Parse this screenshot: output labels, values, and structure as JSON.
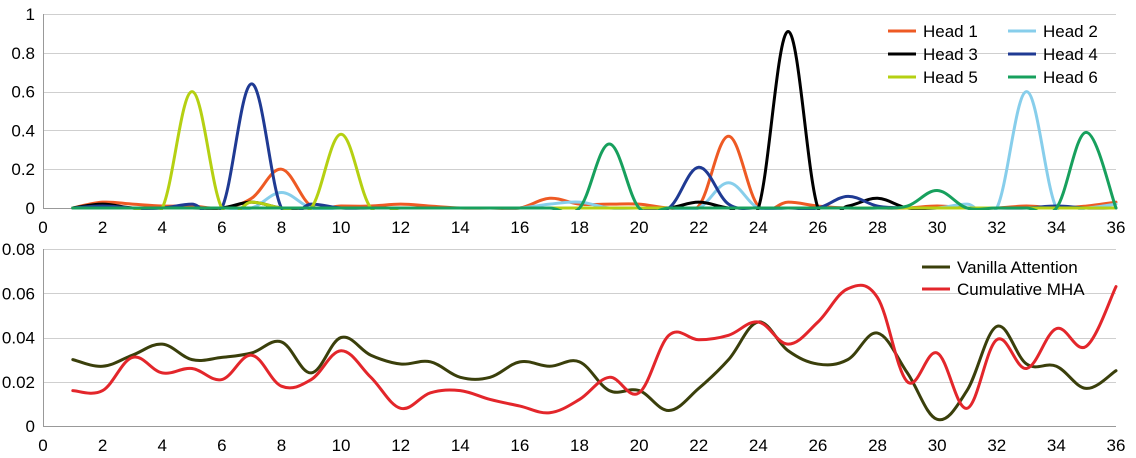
{
  "chart_data": [
    {
      "type": "line",
      "title": "",
      "xlabel": "",
      "ylabel": "",
      "xlim": [
        0,
        36
      ],
      "ylim": [
        0,
        1
      ],
      "xticks": [
        0,
        2,
        4,
        6,
        8,
        10,
        12,
        14,
        16,
        18,
        20,
        22,
        24,
        26,
        28,
        30,
        32,
        34,
        36
      ],
      "yticks": [
        0,
        0.2,
        0.4,
        0.6,
        0.8,
        1
      ],
      "ytick_labels": [
        "0",
        "0.2",
        "0.4",
        "0.6",
        "0.8",
        "1"
      ],
      "grid": true,
      "legend": "top-right",
      "x": [
        1,
        2,
        3,
        4,
        5,
        6,
        7,
        8,
        9,
        10,
        11,
        12,
        13,
        14,
        15,
        16,
        17,
        18,
        19,
        20,
        21,
        22,
        23,
        24,
        25,
        26,
        27,
        28,
        29,
        30,
        31,
        32,
        33,
        34,
        35,
        36
      ],
      "series": [
        {
          "name": "Head 1",
          "color": "#ee5a24",
          "values": [
            0,
            0.03,
            0.02,
            0.01,
            0.01,
            0,
            0.05,
            0.2,
            0.01,
            0.01,
            0.01,
            0.02,
            0.01,
            0,
            0,
            0,
            0.05,
            0.02,
            0.02,
            0.02,
            0,
            0.01,
            0.37,
            0.01,
            0.03,
            0.01,
            0,
            0,
            0,
            0.01,
            0,
            0,
            0.01,
            0,
            0.01,
            0.03
          ]
        },
        {
          "name": "Head 2",
          "color": "#87ceeb",
          "values": [
            0,
            0,
            0,
            0,
            0,
            0,
            0,
            0.08,
            0,
            0,
            0,
            0,
            0,
            0,
            0,
            0,
            0.02,
            0.03,
            0,
            0,
            0,
            0,
            0.13,
            0,
            0,
            0,
            0,
            0,
            0,
            0,
            0.02,
            0,
            0.6,
            0,
            0,
            0.02
          ]
        },
        {
          "name": "Head 3",
          "color": "#000000",
          "values": [
            0,
            0.02,
            0,
            0,
            0,
            0,
            0.03,
            0,
            0,
            0,
            0,
            0,
            0,
            0,
            0,
            0,
            0,
            0,
            0,
            0,
            0,
            0.03,
            0,
            0,
            0.91,
            0,
            0.01,
            0.05,
            0,
            0,
            0,
            0,
            0,
            0,
            0,
            0
          ]
        },
        {
          "name": "Head 4",
          "color": "#1f3a93",
          "values": [
            0,
            0.01,
            0,
            0,
            0.02,
            0,
            0.64,
            0,
            0.02,
            0,
            0,
            0,
            0,
            0,
            0,
            0,
            0,
            0,
            0,
            0,
            0,
            0.21,
            0.02,
            0,
            0,
            0,
            0.06,
            0.01,
            0,
            0,
            0,
            0,
            0,
            0.01,
            0,
            0
          ]
        },
        {
          "name": "Head 5",
          "color": "#b5d012",
          "values": [
            0,
            0,
            0,
            0,
            0.6,
            0,
            0.03,
            0,
            0,
            0.38,
            0,
            0,
            0,
            0,
            0,
            0,
            0,
            0,
            0,
            0,
            0,
            0,
            0,
            0,
            0,
            0,
            0,
            0,
            0,
            0,
            0,
            0,
            0,
            0,
            0,
            0
          ]
        },
        {
          "name": "Head 6",
          "color": "#17a05d",
          "values": [
            0,
            0,
            0,
            0,
            0,
            0,
            0,
            0,
            0,
            0,
            0,
            0,
            0,
            0,
            0,
            0,
            0,
            0,
            0.33,
            0,
            0,
            0,
            0,
            0,
            0,
            0,
            0,
            0,
            0.01,
            0.09,
            0,
            0,
            0,
            0,
            0.39,
            0
          ]
        }
      ]
    },
    {
      "type": "line",
      "title": "",
      "xlabel": "",
      "ylabel": "",
      "xlim": [
        0,
        36
      ],
      "ylim": [
        0,
        0.08
      ],
      "xticks": [
        0,
        2,
        4,
        6,
        8,
        10,
        12,
        14,
        16,
        18,
        20,
        22,
        24,
        26,
        28,
        30,
        32,
        34,
        36
      ],
      "yticks": [
        0,
        0.02,
        0.04,
        0.06,
        0.08
      ],
      "ytick_labels": [
        "0",
        "0.02",
        "0.04",
        "0.06",
        "0.08"
      ],
      "grid": true,
      "legend": "top-right",
      "x": [
        1,
        2,
        3,
        4,
        5,
        6,
        7,
        8,
        9,
        10,
        11,
        12,
        13,
        14,
        15,
        16,
        17,
        18,
        19,
        20,
        21,
        22,
        23,
        24,
        25,
        26,
        27,
        28,
        29,
        30,
        31,
        32,
        33,
        34,
        35,
        36
      ],
      "series": [
        {
          "name": "Vanilla Attention",
          "color": "#3a3f0b",
          "values": [
            0.03,
            0.027,
            0.032,
            0.037,
            0.03,
            0.031,
            0.033,
            0.038,
            0.024,
            0.04,
            0.032,
            0.028,
            0.029,
            0.022,
            0.022,
            0.029,
            0.027,
            0.029,
            0.016,
            0.016,
            0.007,
            0.017,
            0.03,
            0.047,
            0.034,
            0.028,
            0.03,
            0.042,
            0.024,
            0.003,
            0.016,
            0.045,
            0.028,
            0.027,
            0.017,
            0.025
          ]
        },
        {
          "name": "Cumulative MHA",
          "color": "#e3262b",
          "values": [
            0.016,
            0.016,
            0.031,
            0.024,
            0.026,
            0.021,
            0.032,
            0.018,
            0.021,
            0.034,
            0.022,
            0.008,
            0.015,
            0.016,
            0.012,
            0.009,
            0.006,
            0.012,
            0.022,
            0.015,
            0.041,
            0.039,
            0.041,
            0.047,
            0.037,
            0.047,
            0.062,
            0.058,
            0.02,
            0.033,
            0.008,
            0.039,
            0.026,
            0.044,
            0.036,
            0.063
          ]
        }
      ]
    }
  ]
}
